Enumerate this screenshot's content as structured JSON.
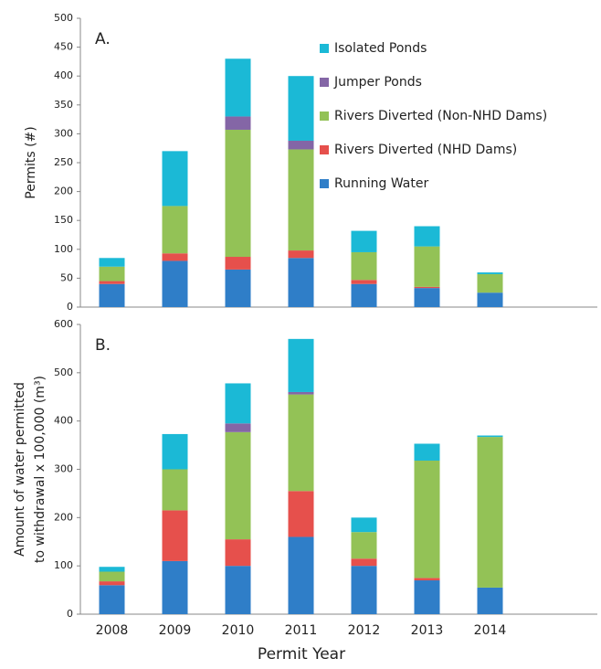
{
  "chart_data": [
    {
      "type": "stacked_bar",
      "annotation": "A.",
      "ylabel": "Permits (#)",
      "categories": [
        null,
        null,
        null,
        null,
        null,
        null,
        null
      ],
      "ylim": [
        0,
        500
      ],
      "yticks": [
        0,
        50,
        100,
        150,
        200,
        250,
        300,
        350,
        400,
        450,
        500
      ],
      "legend": "top-right",
      "series": [
        {
          "name": "Running Water",
          "color": "#2f7ec8",
          "values": [
            40,
            80,
            65,
            85,
            40,
            33,
            25
          ]
        },
        {
          "name": "Rivers Diverted (NHD Dams)",
          "color": "#e6504c",
          "values": [
            5,
            13,
            22,
            13,
            7,
            2,
            0
          ]
        },
        {
          "name": "Rivers Diverted (Non-NHD Dams)",
          "color": "#93c256",
          "values": [
            25,
            82,
            220,
            175,
            48,
            70,
            32
          ]
        },
        {
          "name": "Jumper Ponds",
          "color": "#8466a6",
          "values": [
            0,
            0,
            23,
            15,
            0,
            0,
            0
          ]
        },
        {
          "name": "Isolated Ponds",
          "color": "#1bb9d6",
          "values": [
            15,
            95,
            100,
            112,
            37,
            35,
            3
          ]
        }
      ]
    },
    {
      "type": "stacked_bar",
      "annotation": "B.",
      "ylabel": [
        "Amount of water permitted",
        "to withdrawal x 100,000 (m³)"
      ],
      "xlabel": "Permit Year",
      "categories": [
        "2008",
        "2009",
        "2010",
        "2011",
        "2012",
        "2013",
        "2014"
      ],
      "ylim": [
        0,
        600
      ],
      "yticks": [
        0,
        100,
        200,
        300,
        400,
        500,
        600
      ],
      "series": [
        {
          "color": "#2f7ec8",
          "values": [
            60,
            110,
            100,
            160,
            100,
            70,
            55
          ]
        },
        {
          "color": "#e6504c",
          "values": [
            8,
            105,
            55,
            95,
            15,
            5,
            0
          ]
        },
        {
          "color": "#93c256",
          "values": [
            20,
            85,
            222,
            200,
            55,
            243,
            312
          ]
        },
        {
          "color": "#8466a6",
          "values": [
            0,
            0,
            18,
            5,
            0,
            0,
            0
          ]
        },
        {
          "color": "#1bb9d6",
          "values": [
            10,
            73,
            83,
            110,
            30,
            35,
            3
          ]
        }
      ]
    }
  ]
}
